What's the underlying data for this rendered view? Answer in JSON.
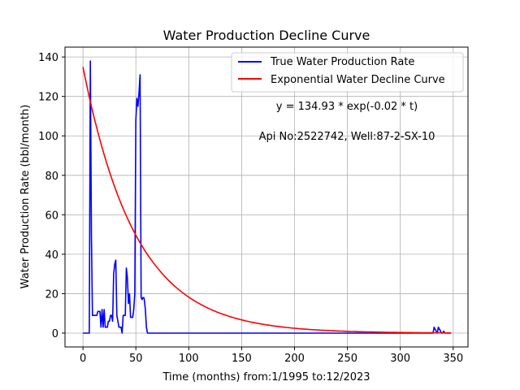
{
  "chart_data": {
    "type": "line",
    "title": "Water Production Decline Curve",
    "xlabel": "Time (months) from:1/1995 to:12/2023",
    "ylabel": "Water Production Rate (bbl/month)",
    "xlim": [
      -17,
      364
    ],
    "ylim": [
      -7,
      145
    ],
    "xticks": [
      0,
      50,
      100,
      150,
      200,
      250,
      300,
      350
    ],
    "yticks": [
      0,
      20,
      40,
      60,
      80,
      100,
      120,
      140
    ],
    "grid": true,
    "legend_position": "top-right",
    "annotations": [
      {
        "id": "equation",
        "text": "y = 134.93 * exp(-0.02 * t)"
      },
      {
        "id": "well",
        "text": "Api No:2522742, Well:87-2-SX-10"
      }
    ],
    "series": [
      {
        "name": "True Water Production Rate",
        "color": "#0000ff",
        "x": [
          0,
          6,
          6.5,
          7,
          8,
          9,
          10,
          11,
          12,
          13,
          14,
          15,
          16,
          17,
          18,
          19,
          20,
          21,
          22,
          23,
          24,
          25,
          26,
          27,
          28,
          29,
          30,
          31,
          32,
          33,
          34,
          35,
          36,
          37,
          38,
          39,
          40,
          41,
          42,
          43,
          44,
          45,
          46,
          47,
          48,
          49,
          50,
          51,
          52,
          53,
          54,
          55,
          56,
          56.5,
          57,
          57.5,
          58,
          59,
          60,
          61,
          62,
          63,
          64,
          65,
          66,
          67,
          68,
          70,
          100,
          150,
          200,
          250,
          300,
          330,
          331,
          332,
          333,
          334,
          335,
          336,
          337,
          338,
          339,
          340,
          341,
          342,
          343,
          344,
          345,
          346,
          347,
          348
        ],
        "y": [
          0,
          0,
          75,
          138,
          50,
          9,
          9,
          9,
          9,
          9,
          11,
          11,
          11,
          3,
          12,
          3,
          12,
          3,
          3,
          3,
          6,
          6,
          9,
          9,
          6,
          30,
          35,
          37,
          9,
          6,
          3,
          3,
          3,
          0,
          9,
          9,
          9,
          33,
          28,
          15,
          20,
          8,
          8,
          8,
          12,
          20,
          108,
          119,
          115,
          122,
          131,
          18,
          17,
          18,
          18,
          18,
          17,
          12,
          3,
          0,
          0,
          0,
          0,
          0,
          0,
          0,
          0,
          0,
          0,
          0,
          0,
          0,
          0,
          0,
          0,
          3,
          2,
          1,
          0,
          3,
          2,
          1,
          0,
          0,
          1,
          0,
          0,
          0,
          0,
          0,
          0,
          0
        ]
      },
      {
        "name": "Exponential Water Decline Curve",
        "color": "#ff0000",
        "model": {
          "a": 134.93,
          "b": 0.02,
          "x_start": 0,
          "x_end": 348
        }
      }
    ]
  }
}
